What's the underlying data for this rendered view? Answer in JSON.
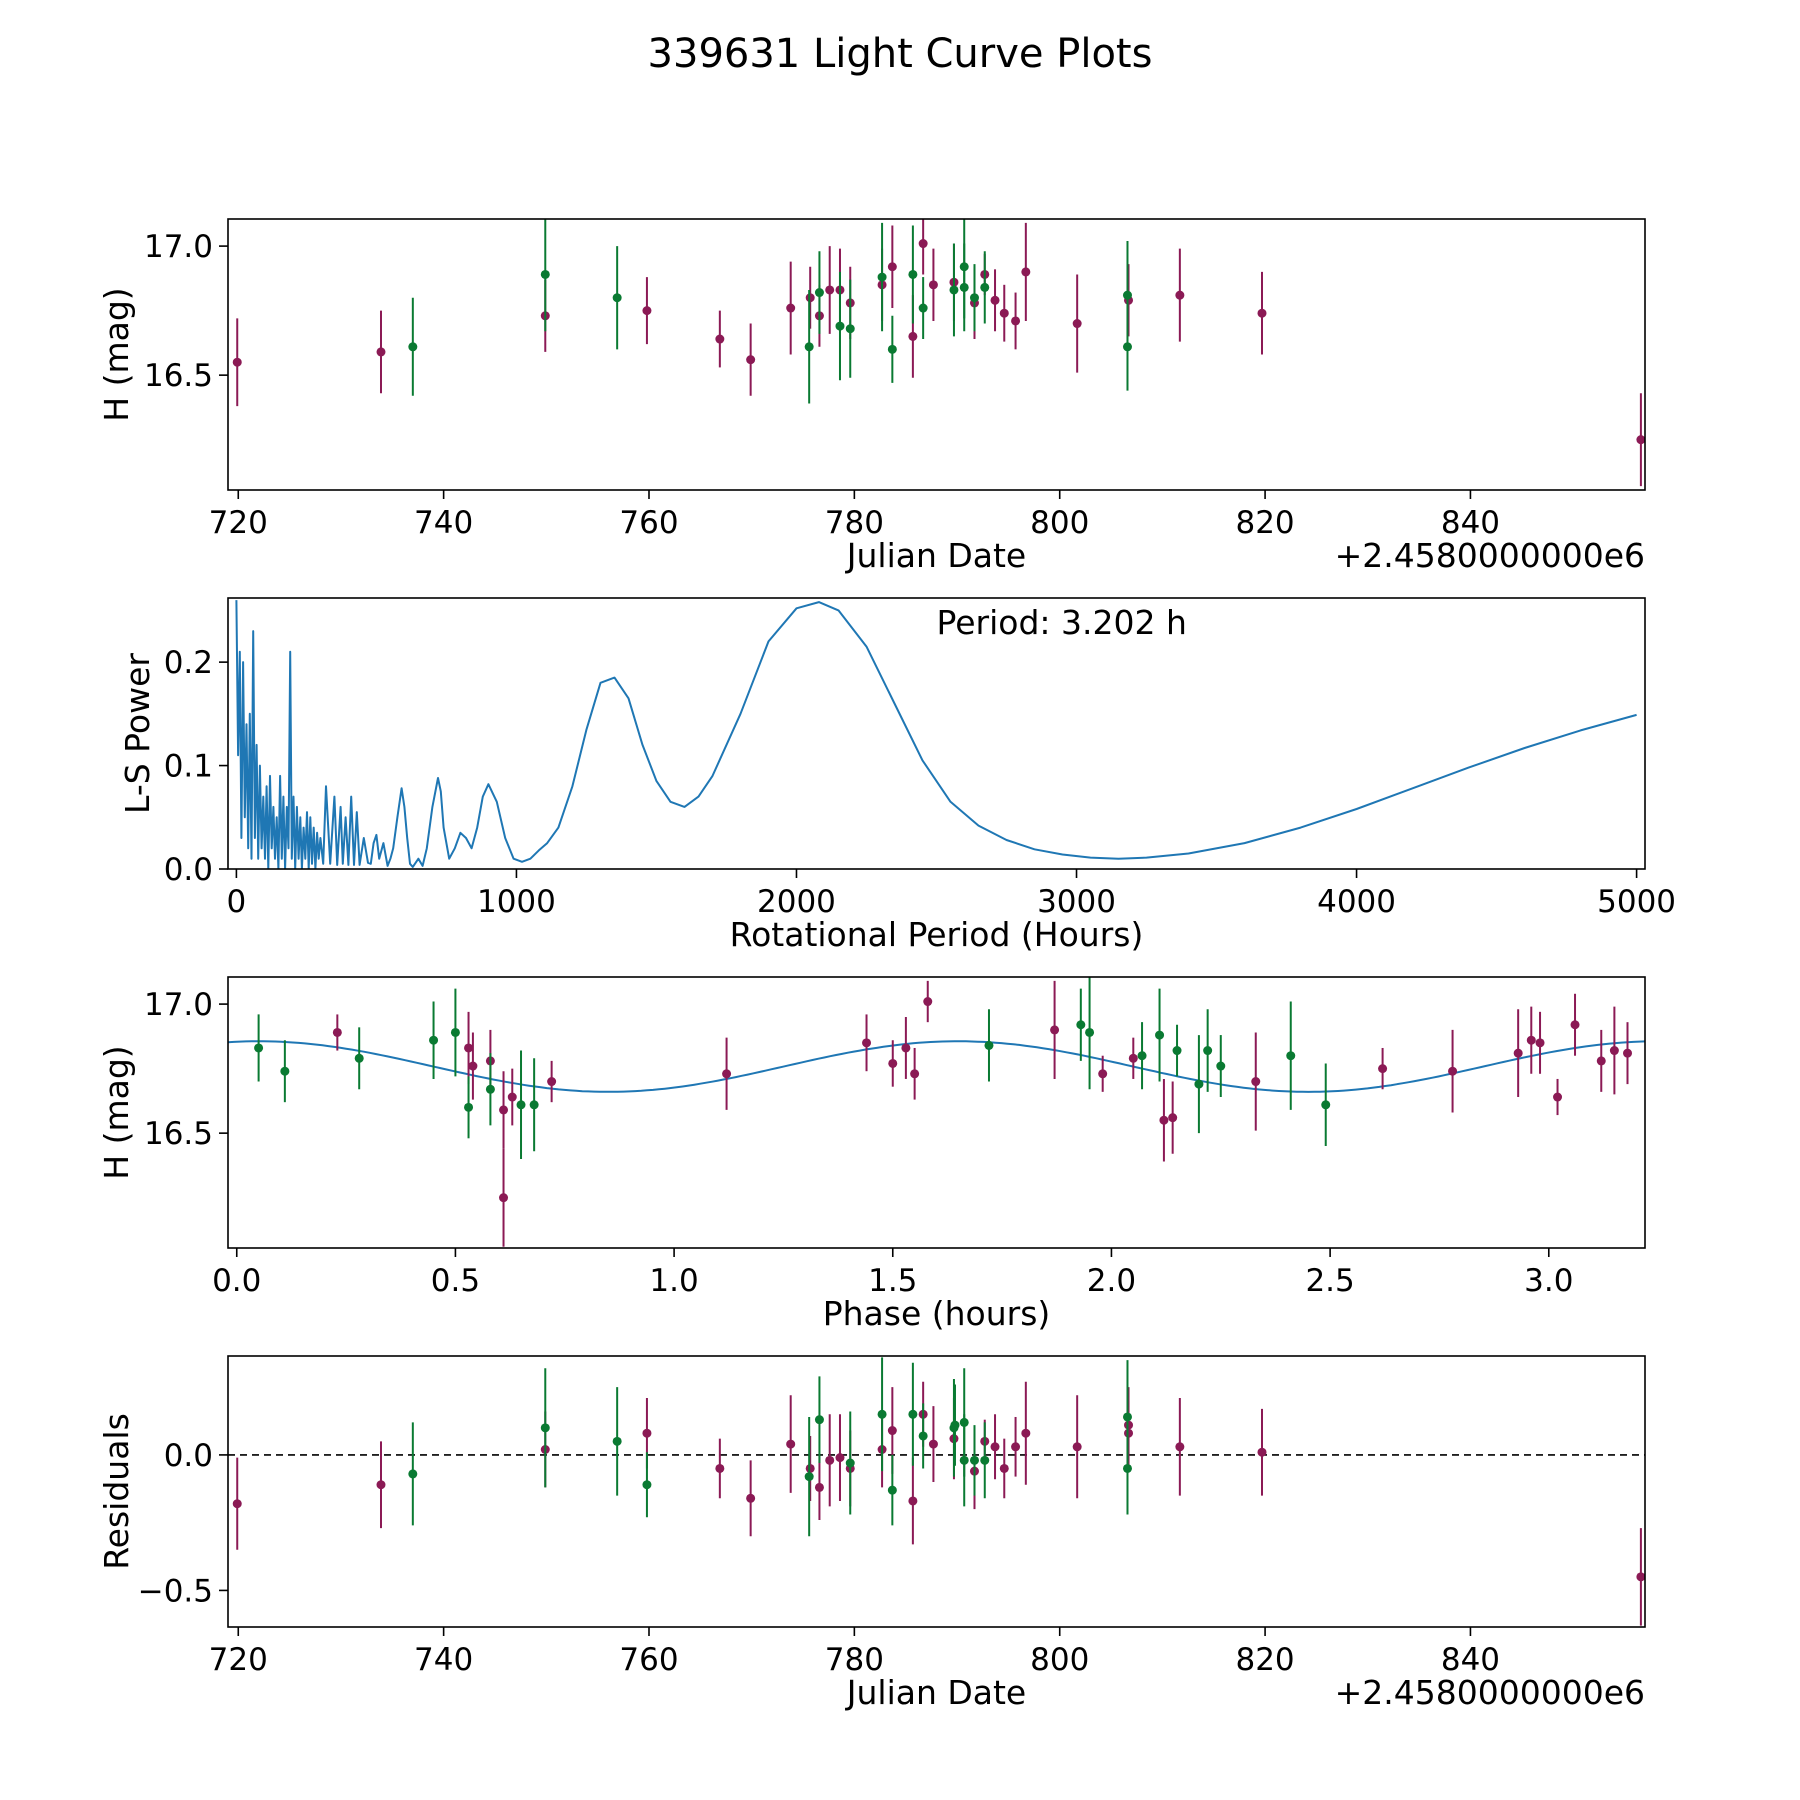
{
  "figure": {
    "title": "339631 Light Curve Plots"
  },
  "colors": {
    "magenta": "#8b1a55",
    "green": "#0a7a32",
    "model": "#1f77b4",
    "axis": "#000000"
  },
  "chart_data": [
    {
      "type": "scatter",
      "id": "lc",
      "xlabel": "Julian Date",
      "ylabel": "H (mag)",
      "offset_text": "+2.4580000000e6",
      "xlim": [
        719,
        857
      ],
      "ylim": [
        16.055,
        17.105
      ],
      "xticks": [
        720,
        740,
        760,
        780,
        800,
        820,
        840
      ],
      "xtick_labels": [
        "720",
        "740",
        "760",
        "780",
        "800",
        "820",
        "840"
      ],
      "yticks": [
        16.5,
        17.0
      ],
      "ytick_labels": [
        "16.5",
        "17.0"
      ],
      "series": [
        {
          "name": "magenta",
          "color": "#8b1a55",
          "x": [
            719.9,
            733.9,
            749.9,
            759.8,
            766.9,
            769.9,
            773.8,
            775.7,
            776.6,
            777.6,
            778.6,
            779.6,
            782.7,
            783.7,
            785.7,
            786.7,
            787.7,
            789.7,
            791.7,
            792.7,
            793.7,
            794.6,
            795.7,
            796.7,
            801.7,
            806.7,
            811.7,
            819.7,
            856.6
          ],
          "y": [
            16.55,
            16.59,
            16.73,
            16.75,
            16.64,
            16.56,
            16.76,
            16.8,
            16.73,
            16.83,
            16.83,
            16.78,
            16.85,
            16.92,
            16.65,
            17.01,
            16.85,
            16.86,
            16.78,
            16.89,
            16.79,
            16.74,
            16.71,
            16.9,
            16.7,
            16.79,
            16.81,
            16.74,
            16.25
          ],
          "err": [
            0.17,
            0.16,
            0.14,
            0.13,
            0.11,
            0.14,
            0.18,
            0.12,
            0.12,
            0.17,
            0.16,
            0.14,
            0.14,
            0.16,
            0.16,
            0.12,
            0.14,
            0.15,
            0.14,
            0.08,
            0.12,
            0.11,
            0.11,
            0.19,
            0.19,
            0.14,
            0.18,
            0.16,
            0.18
          ]
        },
        {
          "name": "green",
          "color": "#0a7a32",
          "x": [
            737.0,
            749.9,
            756.9,
            775.6,
            776.6,
            778.6,
            779.6,
            782.7,
            783.7,
            785.7,
            786.7,
            789.7,
            790.7,
            790.7,
            791.7,
            792.7,
            806.6,
            806.6
          ],
          "y": [
            16.61,
            16.89,
            16.8,
            16.61,
            16.82,
            16.69,
            16.68,
            16.88,
            16.6,
            16.89,
            16.76,
            16.83,
            16.92,
            16.84,
            16.8,
            16.84,
            16.61,
            16.81
          ],
          "err": [
            0.19,
            0.22,
            0.2,
            0.22,
            0.16,
            0.21,
            0.19,
            0.21,
            0.13,
            0.19,
            0.12,
            0.18,
            0.2,
            0.17,
            0.13,
            0.14,
            0.17,
            0.21
          ]
        }
      ]
    },
    {
      "type": "line",
      "id": "ls",
      "xlabel": "Rotational Period (Hours)",
      "ylabel": "L-S Power",
      "annotation": "Period: 3.202 h",
      "xlim": [
        -30,
        5030
      ],
      "ylim": [
        0,
        0.262
      ],
      "xticks": [
        0,
        1000,
        2000,
        3000,
        4000,
        5000
      ],
      "xtick_labels": [
        "0",
        "1000",
        "2000",
        "3000",
        "4000",
        "5000"
      ],
      "yticks": [
        0,
        0.1,
        0.2
      ],
      "ytick_labels": [
        "0.0",
        "0.1",
        "0.2"
      ],
      "series": [
        {
          "name": "L-S periodogram",
          "color": "#1f77b4",
          "x": [
            0,
            6,
            12,
            18,
            24,
            30,
            36,
            42,
            48,
            54,
            60,
            66,
            72,
            78,
            84,
            90,
            96,
            102,
            108,
            114,
            120,
            126,
            132,
            138,
            144,
            150,
            156,
            162,
            168,
            174,
            180,
            186,
            192,
            198,
            204,
            210,
            216,
            222,
            228,
            234,
            240,
            246,
            252,
            258,
            264,
            270,
            276,
            282,
            288,
            294,
            300,
            310,
            320,
            335,
            350,
            360,
            372,
            380,
            390,
            400,
            410,
            420,
            430,
            440,
            455,
            470,
            480,
            490,
            500,
            510,
            525,
            540,
            550,
            560,
            575,
            590,
            600,
            610,
            620,
            630,
            650,
            665,
            680,
            700,
            720,
            730,
            740,
            760,
            780,
            800,
            820,
            840,
            860,
            880,
            900,
            930,
            960,
            990,
            1020,
            1050,
            1080,
            1110,
            1150,
            1200,
            1250,
            1300,
            1350,
            1400,
            1450,
            1500,
            1550,
            1600,
            1650,
            1700,
            1800,
            1900,
            2000,
            2080,
            2150,
            2250,
            2350,
            2450,
            2550,
            2650,
            2750,
            2850,
            2950,
            3050,
            3150,
            3250,
            3400,
            3600,
            3800,
            4000,
            4200,
            4400,
            4600,
            4800,
            5000
          ],
          "y": [
            0.26,
            0.11,
            0.21,
            0.03,
            0.2,
            0.05,
            0.14,
            0.02,
            0.15,
            0.01,
            0.23,
            0.03,
            0.12,
            0.01,
            0.1,
            0.02,
            0.07,
            0.01,
            0.08,
            0.0,
            0.09,
            0.02,
            0.06,
            0.01,
            0.05,
            0.0,
            0.09,
            0.01,
            0.07,
            0.0,
            0.06,
            0.02,
            0.21,
            0.01,
            0.07,
            0.0,
            0.06,
            0.01,
            0.05,
            0.0,
            0.04,
            0.01,
            0.055,
            0.0,
            0.05,
            0.005,
            0.04,
            0.0,
            0.035,
            0.01,
            0.03,
            0.005,
            0.08,
            0.005,
            0.07,
            0.004,
            0.06,
            0.005,
            0.05,
            0.004,
            0.07,
            0.004,
            0.055,
            0.004,
            0.03,
            0.006,
            0.005,
            0.025,
            0.033,
            0.01,
            0.025,
            0.003,
            0.01,
            0.02,
            0.05,
            0.078,
            0.06,
            0.03,
            0.005,
            0.002,
            0.01,
            0.003,
            0.02,
            0.06,
            0.088,
            0.075,
            0.04,
            0.01,
            0.02,
            0.035,
            0.03,
            0.02,
            0.04,
            0.07,
            0.082,
            0.065,
            0.03,
            0.01,
            0.007,
            0.01,
            0.018,
            0.025,
            0.04,
            0.08,
            0.135,
            0.18,
            0.185,
            0.165,
            0.12,
            0.085,
            0.065,
            0.06,
            0.07,
            0.09,
            0.15,
            0.22,
            0.252,
            0.258,
            0.25,
            0.215,
            0.16,
            0.105,
            0.065,
            0.042,
            0.028,
            0.019,
            0.014,
            0.011,
            0.01,
            0.011,
            0.015,
            0.025,
            0.04,
            0.058,
            0.078,
            0.098,
            0.117,
            0.134,
            0.149
          ]
        }
      ]
    },
    {
      "type": "scatter",
      "id": "phase",
      "xlabel": "Phase (hours)",
      "ylabel": "H (mag)",
      "xlim": [
        -0.02,
        3.22
      ],
      "ylim": [
        16.055,
        17.105
      ],
      "xticks": [
        0,
        0.5,
        1.0,
        1.5,
        2.0,
        2.5,
        3.0
      ],
      "xtick_labels": [
        "0.0",
        "0.5",
        "1.0",
        "1.5",
        "2.0",
        "2.5",
        "3.0"
      ],
      "yticks": [
        16.5,
        17.0
      ],
      "ytick_labels": [
        "16.5",
        "17.0"
      ],
      "model": {
        "mean": 16.758,
        "amplitude": 0.098,
        "period": 1.6,
        "peak_phase": 0.05,
        "color": "#1f77b4"
      },
      "series": [
        {
          "name": "magenta",
          "color": "#8b1a55",
          "x": [
            0.23,
            0.53,
            0.54,
            0.58,
            0.61,
            0.61,
            0.63,
            0.72,
            1.12,
            1.44,
            1.5,
            1.53,
            1.55,
            1.58,
            1.87,
            1.98,
            2.05,
            2.12,
            2.14,
            2.33,
            2.62,
            2.78,
            2.93,
            2.96,
            2.98,
            3.02,
            3.06,
            3.12,
            3.15,
            3.18
          ],
          "y": [
            16.89,
            16.83,
            16.76,
            16.78,
            16.59,
            16.25,
            16.64,
            16.7,
            16.73,
            16.85,
            16.77,
            16.83,
            16.73,
            17.01,
            16.9,
            16.73,
            16.79,
            16.55,
            16.56,
            16.7,
            16.75,
            16.74,
            16.81,
            16.86,
            16.85,
            16.64,
            16.92,
            16.78,
            16.82,
            16.81
          ],
          "err": [
            0.07,
            0.14,
            0.13,
            0.12,
            0.15,
            0.19,
            0.11,
            0.08,
            0.14,
            0.11,
            0.09,
            0.12,
            0.1,
            0.08,
            0.19,
            0.07,
            0.08,
            0.16,
            0.14,
            0.19,
            0.08,
            0.16,
            0.17,
            0.13,
            0.12,
            0.07,
            0.12,
            0.12,
            0.17,
            0.12
          ]
        },
        {
          "name": "green",
          "color": "#0a7a32",
          "x": [
            0.05,
            0.11,
            0.28,
            0.45,
            0.5,
            0.53,
            0.58,
            0.65,
            0.68,
            1.72,
            1.93,
            1.95,
            2.07,
            2.11,
            2.15,
            2.2,
            2.22,
            2.25,
            2.41,
            2.49
          ],
          "y": [
            16.83,
            16.74,
            16.79,
            16.86,
            16.89,
            16.6,
            16.67,
            16.61,
            16.61,
            16.84,
            16.92,
            16.89,
            16.8,
            16.88,
            16.82,
            16.69,
            16.82,
            16.76,
            16.8,
            16.61
          ],
          "err": [
            0.13,
            0.12,
            0.12,
            0.15,
            0.17,
            0.12,
            0.14,
            0.21,
            0.18,
            0.14,
            0.14,
            0.22,
            0.13,
            0.18,
            0.1,
            0.19,
            0.16,
            0.12,
            0.21,
            0.16
          ]
        }
      ]
    },
    {
      "type": "scatter",
      "id": "resid",
      "xlabel": "Julian Date",
      "ylabel": "Residuals",
      "offset_text": "+2.4580000000e6",
      "xlim": [
        719,
        857
      ],
      "ylim": [
        -0.635,
        0.365
      ],
      "xticks": [
        720,
        740,
        760,
        780,
        800,
        820,
        840
      ],
      "xtick_labels": [
        "720",
        "740",
        "760",
        "780",
        "800",
        "820",
        "840"
      ],
      "yticks": [
        -0.5,
        0.0
      ],
      "ytick_labels": [
        "−0.5",
        "0.0"
      ],
      "zero_line": 0,
      "series": [
        {
          "name": "magenta",
          "color": "#8b1a55",
          "x": [
            719.9,
            733.9,
            749.9,
            759.8,
            766.9,
            769.9,
            773.8,
            775.7,
            776.6,
            777.6,
            778.6,
            779.6,
            782.7,
            783.7,
            785.7,
            786.7,
            787.7,
            789.7,
            791.7,
            792.7,
            793.7,
            794.6,
            795.7,
            796.7,
            801.7,
            806.7,
            806.7,
            811.7,
            819.7,
            856.6
          ],
          "y": [
            -0.18,
            -0.11,
            0.02,
            0.08,
            -0.05,
            -0.16,
            0.04,
            -0.05,
            -0.12,
            -0.02,
            -0.01,
            -0.05,
            0.02,
            0.09,
            -0.17,
            0.15,
            0.04,
            0.06,
            -0.06,
            0.05,
            0.03,
            -0.05,
            0.03,
            0.08,
            0.03,
            0.11,
            0.08,
            0.03,
            0.01,
            -0.45
          ],
          "err": [
            0.17,
            0.16,
            0.14,
            0.13,
            0.11,
            0.14,
            0.18,
            0.12,
            0.12,
            0.17,
            0.16,
            0.14,
            0.14,
            0.16,
            0.16,
            0.12,
            0.14,
            0.15,
            0.14,
            0.08,
            0.12,
            0.11,
            0.11,
            0.19,
            0.19,
            0.14,
            0.12,
            0.18,
            0.16,
            0.18
          ]
        },
        {
          "name": "green",
          "color": "#0a7a32",
          "x": [
            737.0,
            749.9,
            756.9,
            759.8,
            775.6,
            776.6,
            779.6,
            782.7,
            783.7,
            785.7,
            786.7,
            789.7,
            789.8,
            790.7,
            790.7,
            791.7,
            792.7,
            806.6,
            806.6
          ],
          "y": [
            -0.07,
            0.1,
            0.05,
            -0.11,
            -0.08,
            0.13,
            -0.03,
            0.15,
            -0.13,
            0.15,
            0.07,
            0.1,
            0.11,
            0.12,
            -0.02,
            -0.02,
            -0.02,
            -0.05,
            0.14
          ],
          "err": [
            0.19,
            0.22,
            0.2,
            0.12,
            0.22,
            0.16,
            0.19,
            0.21,
            0.13,
            0.19,
            0.12,
            0.18,
            0.15,
            0.2,
            0.17,
            0.13,
            0.14,
            0.17,
            0.21
          ]
        }
      ]
    }
  ]
}
